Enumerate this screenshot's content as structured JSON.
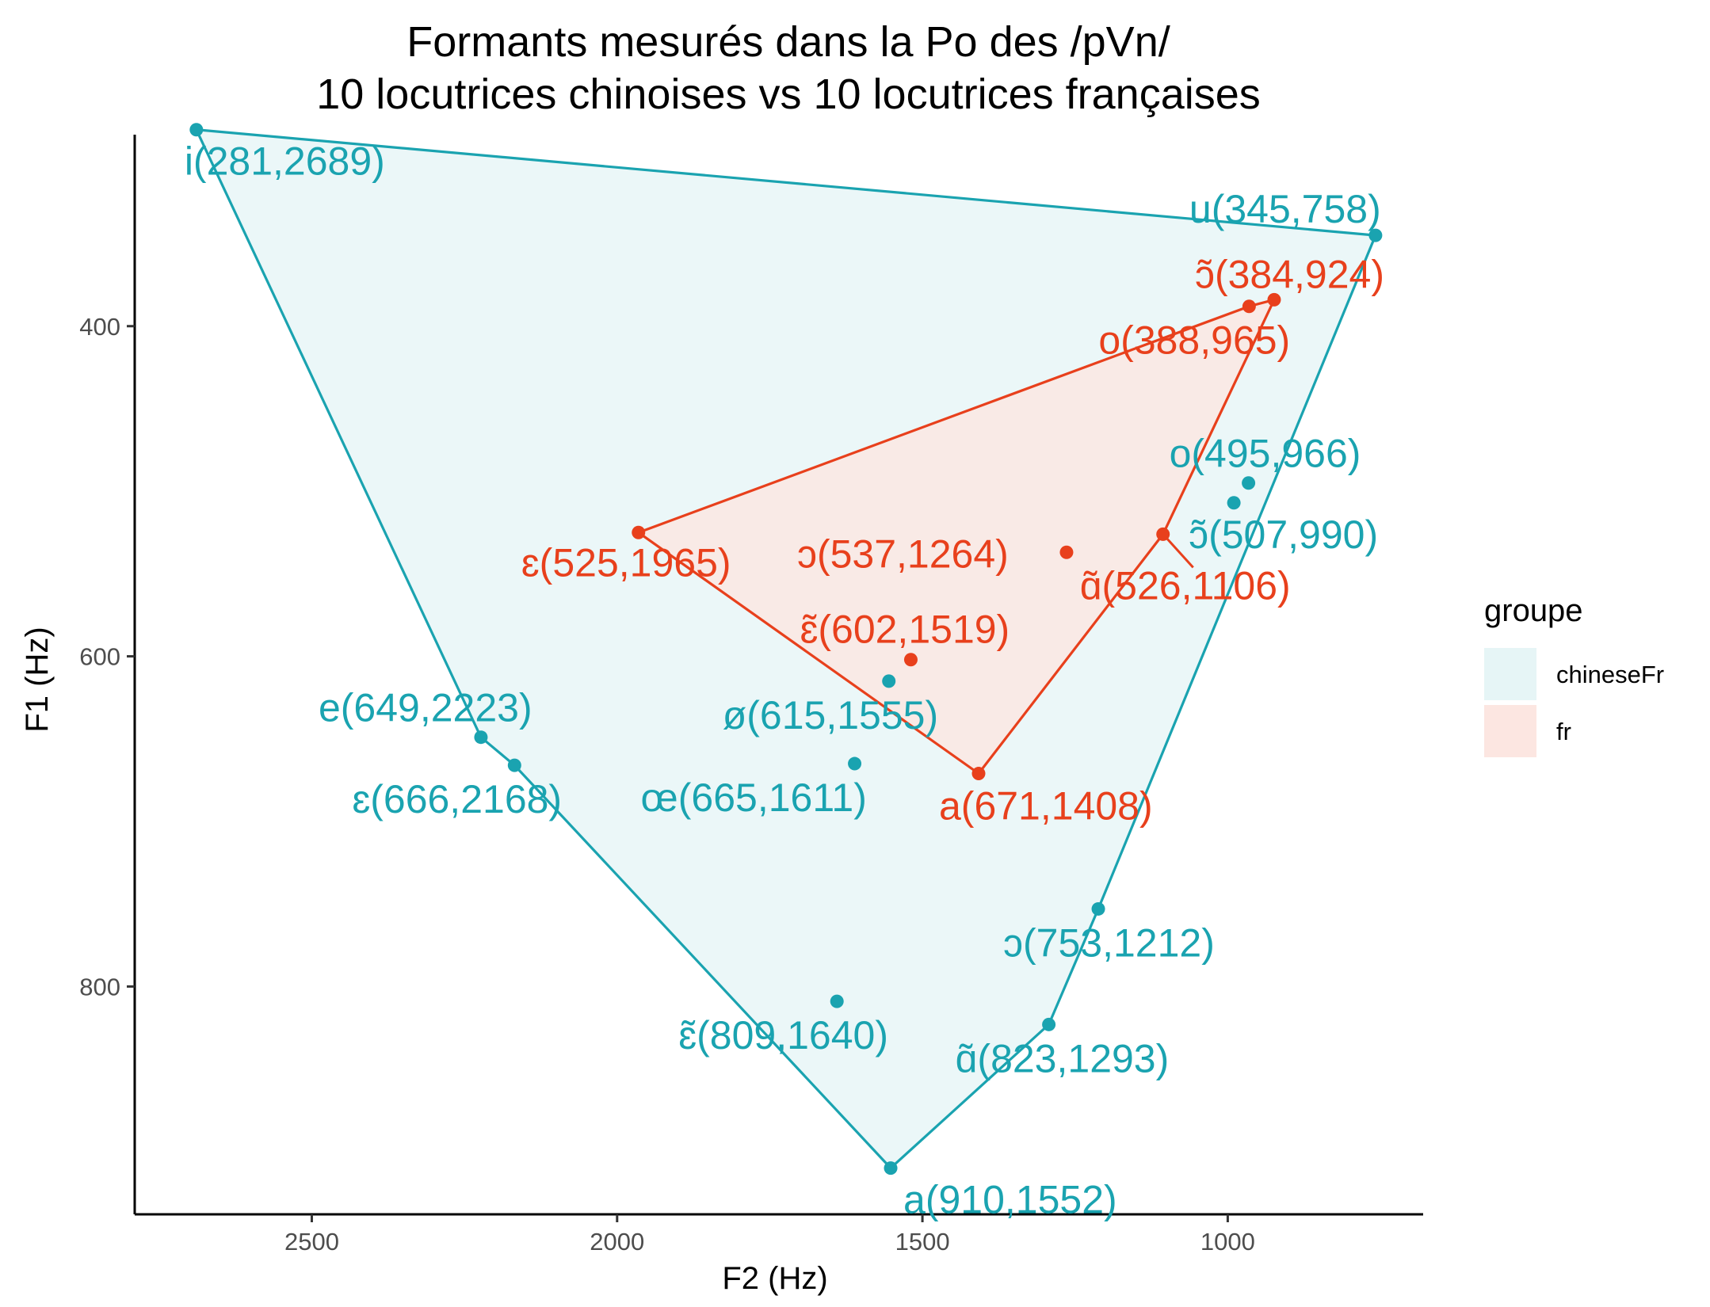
{
  "chart_data": {
    "type": "scatter",
    "title": "Formants mesurés dans la Po des /pVn/",
    "subtitle": "10 locutrices chinoises vs 10 locutrices françaises",
    "xlabel": "F2 (Hz)",
    "ylabel": "F1 (Hz)",
    "x_reversed": true,
    "y_reversed": true,
    "xlim": [
      2790,
      680
    ],
    "ylim": [
      284,
      938
    ],
    "x_ticks": [
      2500,
      2000,
      1500,
      1000
    ],
    "y_ticks": [
      400,
      600,
      800
    ],
    "grid": false,
    "legend": {
      "title": "groupe",
      "position": "right",
      "entries": [
        {
          "name": "chineseFr",
          "color": "#1AA3B0",
          "fill": "#E6F5F6"
        },
        {
          "name": "fr",
          "color": "#E8401C",
          "fill": "#FCE6E1"
        }
      ]
    },
    "series": [
      {
        "name": "chineseFr",
        "color": "#1AA3B0",
        "hull": [
          "i",
          "u",
          "ɔ",
          "ɑ̃",
          "a",
          "ɛ",
          "e"
        ],
        "points": [
          {
            "vowel": "i",
            "label": "i(281,2689)",
            "f1": 281,
            "f2": 2689
          },
          {
            "vowel": "u",
            "label": "u(345,758)",
            "f1": 345,
            "f2": 758
          },
          {
            "vowel": "o",
            "label": "o(495,966)",
            "f1": 495,
            "f2": 966
          },
          {
            "vowel": "ɔ̃",
            "label": "ɔ̃(507,990)",
            "f1": 507,
            "f2": 990
          },
          {
            "vowel": "ø",
            "label": "ø(615,1555)",
            "f1": 615,
            "f2": 1555
          },
          {
            "vowel": "e",
            "label": "e(649,2223)",
            "f1": 649,
            "f2": 2223
          },
          {
            "vowel": "œ",
            "label": "œ(665,1611)",
            "f1": 665,
            "f2": 1611
          },
          {
            "vowel": "ɛ",
            "label": "ɛ(666,2168)",
            "f1": 666,
            "f2": 2168
          },
          {
            "vowel": "ɔ",
            "label": "ɔ(753,1212)",
            "f1": 753,
            "f2": 1212
          },
          {
            "vowel": "ɛ̃",
            "label": "ɛ̃(809,1640)",
            "f1": 809,
            "f2": 1640
          },
          {
            "vowel": "ɑ̃",
            "label": "ɑ̃(823,1293)",
            "f1": 823,
            "f2": 1293
          },
          {
            "vowel": "a",
            "label": "a(910,1552)",
            "f1": 910,
            "f2": 1552
          }
        ]
      },
      {
        "name": "fr",
        "color": "#E8401C",
        "hull": [
          "ɛ",
          "o",
          "ɔ̃",
          "ɑ̃",
          "a"
        ],
        "points": [
          {
            "vowel": "ɔ̃",
            "label": "ɔ̃(384,924)",
            "f1": 384,
            "f2": 924
          },
          {
            "vowel": "o",
            "label": "o(388,965)",
            "f1": 388,
            "f2": 965
          },
          {
            "vowel": "ɛ",
            "label": "ɛ(525,1965)",
            "f1": 525,
            "f2": 1965
          },
          {
            "vowel": "ɑ̃",
            "label": "ɑ̃(526,1106)",
            "f1": 526,
            "f2": 1106
          },
          {
            "vowel": "ɔ",
            "label": "ɔ(537,1264)",
            "f1": 537,
            "f2": 1264
          },
          {
            "vowel": "ɛ̃",
            "label": "ɛ̃(602,1519)",
            "f1": 602,
            "f2": 1519
          },
          {
            "vowel": "a",
            "label": "a(671,1408)",
            "f1": 671,
            "f2": 1408
          }
        ]
      }
    ]
  }
}
